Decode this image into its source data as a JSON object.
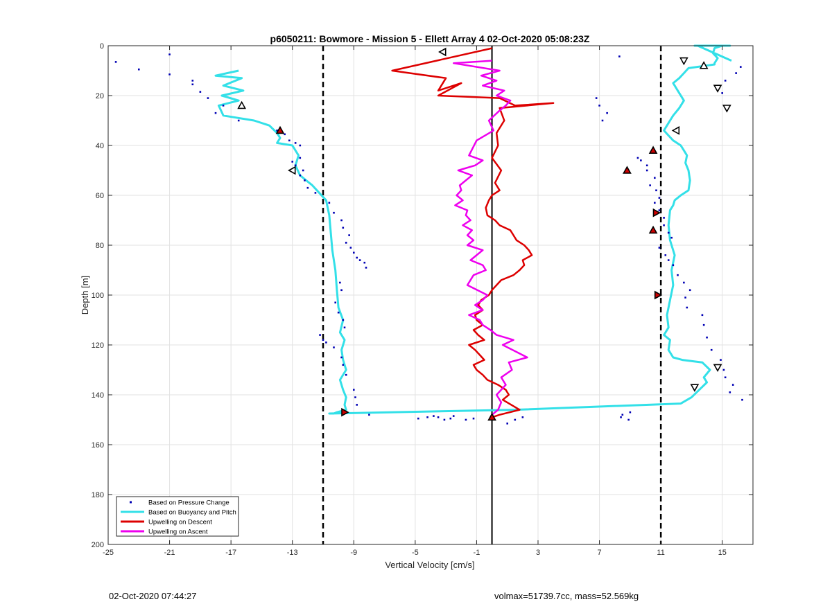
{
  "footer": {
    "left": "02-Oct-2020 07:44:27",
    "right": "volmax=51739.7cc, mass=52.569kg"
  },
  "chart_data": {
    "type": "line",
    "title": "p6050211: Bowmore - Mission 5 - Ellett Array 4 02-Oct-2020 05:08:23Z",
    "xlabel": "Vertical Velocity [cm/s]",
    "ylabel": "Depth [m]",
    "xlim": [
      -25,
      17
    ],
    "ylim": [
      0,
      200
    ],
    "y_reversed": true,
    "grid": true,
    "xticks": [
      -25,
      -21,
      -17,
      -13,
      -9,
      -5,
      -1,
      3,
      7,
      11,
      15
    ],
    "yticks": [
      0,
      20,
      40,
      60,
      80,
      100,
      120,
      140,
      160,
      180,
      200
    ],
    "legend_position": "bottom-left",
    "colors": {
      "pressure": "#0000b4",
      "buoyancy": "#33e0e8",
      "descent": "#dd0000",
      "ascent": "#ee00ee",
      "reference": "#000000"
    },
    "reference_lines": [
      {
        "x": 0,
        "style": "solid"
      },
      {
        "x": -11,
        "style": "dashed"
      },
      {
        "x": 11,
        "style": "dashed"
      }
    ],
    "series": [
      {
        "name": "Based on Pressure Change",
        "style": "dots",
        "x": [
          -24.5,
          -23,
          -21,
          -21,
          -19.5,
          -19.5,
          -19,
          -18.5,
          -18,
          -17.5,
          -16.5,
          -14,
          -13.5,
          -13.2,
          -12.8,
          -12.5,
          -12.5,
          -13,
          -12.8,
          -12.3,
          -12.5,
          -12.2,
          -12,
          -11.5,
          -10.6,
          -10.3,
          -9.8,
          -9.7,
          -9.3,
          -9.5,
          -9.2,
          -9,
          -8.8,
          -8.6,
          -8.3,
          -8.2,
          -9.9,
          -9.8,
          -10.2,
          -10,
          -9.7,
          -9.6,
          -11.2,
          -11,
          -10.8,
          -10.3,
          -9.8,
          -9.7,
          -9.5,
          -9,
          -8.9,
          -8.8,
          -8,
          -4.8,
          -4.2,
          -3.8,
          -3.5,
          -3.1,
          -2.7,
          -2.5,
          -1.7,
          -1.2,
          1,
          1.5,
          2,
          8.3,
          8.5,
          8.9,
          8.4,
          9,
          9.5,
          9.7,
          10.1,
          10.1,
          10.6,
          10.3,
          10.7,
          10.9,
          10.6,
          10.9,
          11.2,
          11.2,
          11.5,
          11.7,
          10.9,
          11.3,
          11.5,
          11.8,
          12.1,
          12.5,
          12.9,
          12.6,
          12.7,
          13.7,
          13.8,
          14,
          14.3,
          14.9,
          15.1,
          15.2,
          15.7,
          15.5,
          16.3,
          16.2,
          15.9,
          15.2,
          15,
          7.5,
          7.2,
          7,
          6.8
        ],
        "y": [
          6.5,
          9.5,
          3.5,
          11.5,
          14,
          15.5,
          18.5,
          21,
          27,
          24,
          30,
          34,
          35.5,
          38,
          39,
          40,
          45,
          46.5,
          48,
          50,
          52,
          54,
          57,
          59,
          63,
          67,
          70,
          73,
          76,
          79,
          81,
          83,
          85,
          86,
          87,
          89,
          95,
          98,
          103,
          107,
          110,
          113,
          116,
          118,
          119,
          121,
          125,
          128,
          132,
          138,
          141,
          144,
          148,
          149.5,
          149,
          148.5,
          149,
          150,
          149.5,
          148.5,
          150,
          149.5,
          151.5,
          150,
          149,
          4.3,
          148,
          150,
          149,
          147,
          45,
          46,
          48,
          50,
          53,
          56,
          58,
          61,
          63,
          66,
          69,
          72,
          75,
          77,
          81,
          84,
          86,
          88,
          92,
          95,
          98,
          101,
          105,
          108,
          112,
          117,
          122,
          126,
          130,
          133,
          136,
          139,
          142,
          8.5,
          11,
          14,
          19,
          27,
          30,
          24,
          21
        ]
      },
      {
        "name": "Based on Buoyancy and Pitch",
        "style": "line",
        "x": [
          -16.5,
          -18,
          -16.3,
          -17.5,
          -16.2,
          -17.6,
          -16.5,
          -17.8,
          -17.5,
          -15.5,
          -14.5,
          -14,
          -13.8,
          -14,
          -13,
          -12.6,
          -12.8,
          -12.5,
          -12.1,
          -11.7,
          -11.4,
          -10.8,
          -10.6,
          -10.5,
          -10.4,
          -10.2,
          -10.1,
          -10,
          -9.7,
          -9.9,
          -9.6,
          -9.8,
          -9.7,
          -9.5,
          -9.9,
          -9.7,
          -9.5,
          -9.6,
          -9.5,
          -10.1,
          -10.3,
          -10.6,
          1.5,
          12.3,
          13,
          13.5,
          14,
          13.8,
          14.2,
          13.7,
          12.4,
          11.8,
          11.5,
          11.6,
          11.2,
          11.5,
          11.4,
          11.6,
          11.8,
          11.7,
          11.9,
          11.6,
          11.5,
          11.6,
          11.8,
          11.9,
          12.3,
          12.8,
          12.9,
          12.8,
          12.6,
          12.7,
          12.5,
          12.3,
          11.8,
          11.5,
          11.2,
          11.4,
          11.6,
          11.8,
          12.2,
          12.5,
          12.1,
          11.8,
          12.2,
          12.5,
          12.8,
          14.5,
          14.5,
          14.7,
          14.4,
          14.5,
          15,
          14.8,
          15,
          15.5,
          13.2,
          13.9,
          13.4,
          15.6
        ],
        "y": [
          10,
          12,
          13,
          16,
          18,
          20,
          22,
          24,
          28,
          30,
          32,
          35,
          37,
          39,
          40,
          44,
          48,
          52,
          54,
          56,
          58,
          62,
          68,
          75,
          82,
          90,
          98,
          105,
          110,
          115,
          118,
          122,
          126,
          130,
          134,
          138,
          141,
          144,
          146,
          147,
          147.5,
          147.5,
          146,
          143.5,
          141,
          138,
          135,
          133,
          130,
          127,
          126,
          125,
          122,
          118,
          116,
          113,
          108,
          102,
          96,
          90,
          84,
          78,
          72,
          66,
          64,
          62,
          60,
          58,
          54,
          50,
          47,
          44,
          42,
          40,
          38,
          36,
          34,
          32,
          30,
          28,
          25,
          22,
          18,
          15,
          13,
          11,
          9,
          7.5,
          7,
          5,
          3,
          1,
          0,
          0,
          0,
          0,
          0,
          0,
          0,
          6
        ]
      },
      {
        "name": "Upwelling on Descent",
        "style": "line",
        "x": [
          0,
          -6.5,
          -3,
          -3.5,
          -2,
          -3.5,
          0.5,
          1.5,
          4,
          0.5,
          0.8,
          0.3,
          0.4,
          0,
          0.6,
          0.2,
          0.5,
          0,
          -0.2,
          -0.4,
          -0.3,
          0.2,
          0.5,
          1.2,
          1.4,
          1.6,
          2.1,
          2.4,
          2.6,
          2,
          2.1,
          1.8,
          1.4,
          0.6,
          0.3,
          0,
          -0.2,
          -0.7,
          -0.9,
          -0.6,
          -1.1,
          -1,
          -0.6,
          -1.2,
          -0.9,
          -0.5,
          -1.5,
          -1.1,
          -0.8,
          -0.5,
          -1.2,
          -1,
          -0.6,
          -0.3,
          0.4,
          0.9,
          1.1,
          0.7,
          1.8,
          0.5,
          0
        ],
        "y": [
          1,
          10,
          13,
          18,
          15,
          20,
          21,
          24,
          23,
          25,
          30,
          35,
          40,
          45,
          50,
          55,
          58,
          60,
          62,
          65,
          68,
          70,
          72,
          74,
          76,
          78,
          80,
          82,
          84,
          86,
          88,
          90,
          92,
          94,
          96,
          98,
          100,
          102,
          104,
          106,
          108,
          110,
          112,
          114,
          116,
          118,
          120,
          122,
          124,
          126,
          128,
          130,
          132,
          134,
          136,
          138,
          140,
          142,
          146,
          148,
          149
        ]
      },
      {
        "name": "Upwelling on Ascent",
        "style": "line",
        "x": [
          0,
          -2.5,
          0.5,
          -0.7,
          0.3,
          -0.6,
          0.8,
          0.3,
          1.2,
          0.9,
          0.5,
          -0.2,
          0.1,
          -1,
          -1.5,
          -0.6,
          -1.1,
          -2.2,
          -1.3,
          -1.7,
          -2.1,
          -2,
          -2.3,
          -1.9,
          -2.4,
          -1.6,
          -1.7,
          -1.4,
          -1.9,
          -1.3,
          -1.6,
          -1.2,
          -1.6,
          -0.6,
          -1,
          -1.4,
          -0.6,
          -0.4,
          -1.2,
          -1.6,
          -0.3,
          -0.6,
          -1.1,
          -0.6,
          -1.5,
          -0.8,
          -0.6,
          -0.1,
          0.3,
          1.4,
          0.7,
          2.3,
          1.1,
          1.3,
          0.6,
          0.9,
          0.3,
          0.6,
          0.4,
          0
        ],
        "y": [
          6,
          7,
          10,
          12,
          14,
          16,
          18,
          20,
          22,
          24,
          26,
          30,
          34,
          38,
          44,
          46,
          48,
          50,
          52,
          54,
          56,
          58,
          60,
          62,
          64,
          66,
          68,
          70,
          72,
          74,
          76,
          78,
          80,
          82,
          84,
          86,
          88,
          90,
          92,
          96,
          100,
          102,
          104,
          106,
          108,
          110,
          112,
          114,
          116,
          118,
          120,
          125,
          127,
          130,
          133,
          136,
          140,
          143,
          146,
          148
        ]
      }
    ],
    "markers": {
      "open_up": [
        {
          "x": -16.3,
          "y": 24
        },
        {
          "x": 13.8,
          "y": 8
        }
      ],
      "open_down": [
        {
          "x": 12.5,
          "y": 6
        },
        {
          "x": 14.7,
          "y": 17
        },
        {
          "x": 15.3,
          "y": 25
        },
        {
          "x": 14.7,
          "y": 129
        },
        {
          "x": 13.2,
          "y": 137
        }
      ],
      "open_left": [
        {
          "x": -3.2,
          "y": 2.5
        },
        {
          "x": 12,
          "y": 34
        },
        {
          "x": -13,
          "y": 50
        }
      ],
      "filled_up": [
        {
          "x": -13.8,
          "y": 34
        },
        {
          "x": 8.8,
          "y": 50
        },
        {
          "x": 10.5,
          "y": 42
        },
        {
          "x": 10.5,
          "y": 74
        },
        {
          "x": 0,
          "y": 149
        }
      ],
      "filled_right": [
        {
          "x": 10.7,
          "y": 67
        },
        {
          "x": 10.8,
          "y": 100
        },
        {
          "x": -9.6,
          "y": 147
        }
      ]
    }
  }
}
